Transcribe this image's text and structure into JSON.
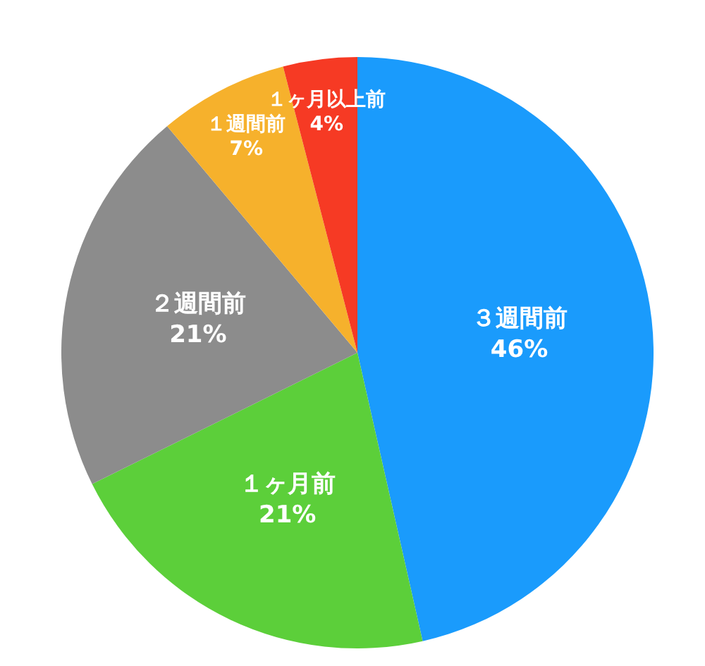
{
  "chart_data": {
    "type": "pie",
    "categories": [
      "３週間前",
      "１ヶ月前",
      "２週間前",
      "１週間前",
      "１ヶ月以上前"
    ],
    "values": [
      46,
      21,
      21,
      7,
      4
    ],
    "colors": [
      "#1a9bfc",
      "#5ccf3a",
      "#8c8c8c",
      "#f6b12c",
      "#f63a24"
    ],
    "value_labels": [
      "46%",
      "21%",
      "21%",
      "7%",
      "4%"
    ]
  }
}
